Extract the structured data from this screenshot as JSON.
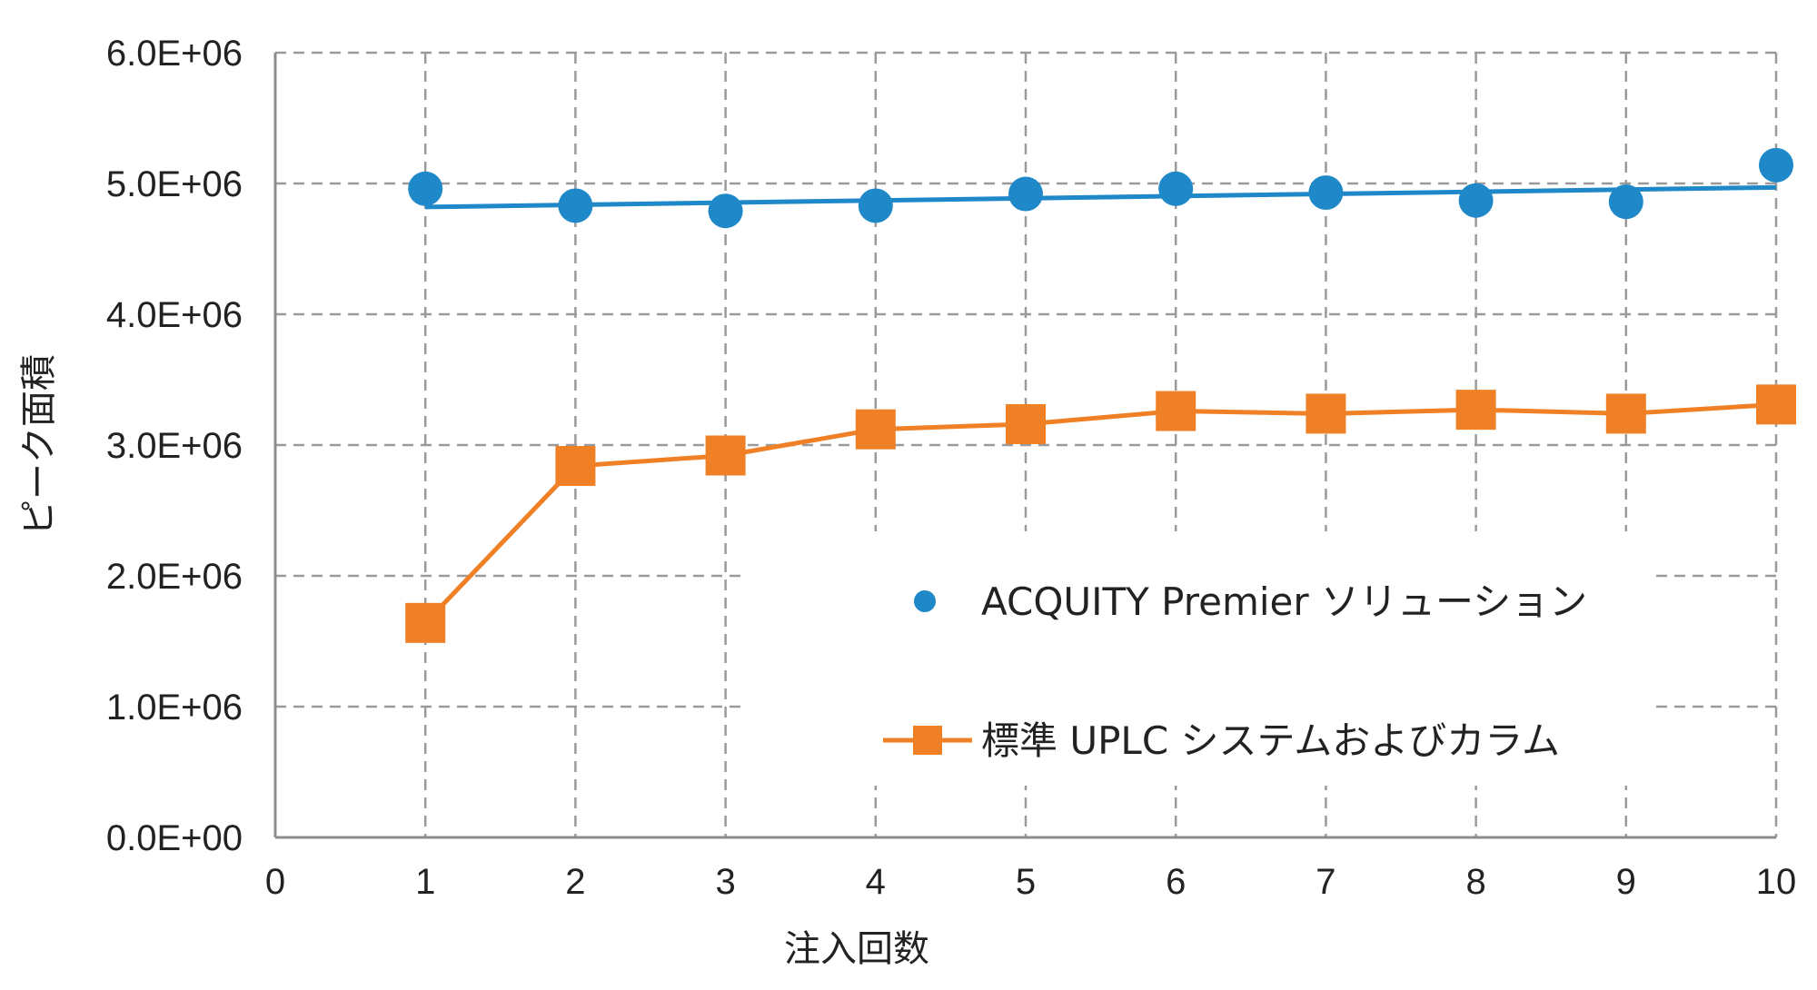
{
  "chart_data": {
    "type": "line",
    "xlabel": "注入回数",
    "ylabel": "ピーク面積",
    "xlim": [
      0,
      10
    ],
    "ylim": [
      0,
      6000000
    ],
    "x_ticks": [
      "0",
      "1",
      "2",
      "3",
      "4",
      "5",
      "6",
      "7",
      "8",
      "9",
      "10"
    ],
    "y_ticks": [
      "0.0E+00",
      "1.0E+06",
      "2.0E+06",
      "3.0E+06",
      "4.0E+06",
      "5.0E+06",
      "6.0E+06"
    ],
    "grid": true,
    "legend_position": "right-center",
    "x": [
      1,
      2,
      3,
      4,
      5,
      6,
      7,
      8,
      9,
      10
    ],
    "series": [
      {
        "name": "ACQUITY Premier ソリューション",
        "marker": "circle",
        "color": "#1E88C8",
        "values": [
          4960000,
          4830000,
          4790000,
          4830000,
          4920000,
          4960000,
          4930000,
          4870000,
          4860000,
          5140000
        ],
        "trendline": {
          "from": [
            1,
            4820000
          ],
          "to": [
            10,
            4970000
          ]
        }
      },
      {
        "name": "標準 UPLC システムおよびカラム",
        "marker": "square",
        "color": "#F08025",
        "values": [
          1640000,
          2840000,
          2920000,
          3120000,
          3160000,
          3260000,
          3240000,
          3270000,
          3240000,
          3310000
        ]
      }
    ]
  }
}
